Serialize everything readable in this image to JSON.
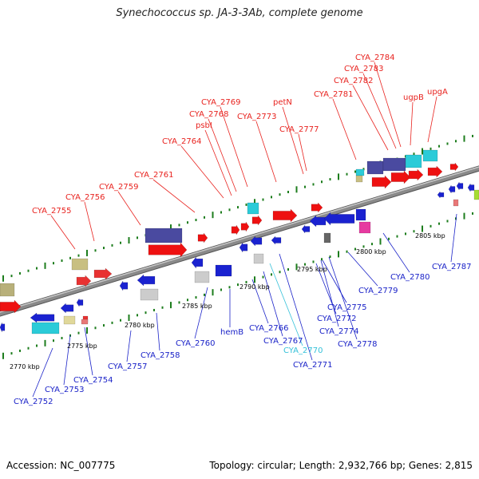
{
  "title": "Synechococcus sp. JA-3-3Ab, complete genome",
  "footer": {
    "accession": "Accession: NC_007775",
    "stats": "Topology: circular; Length: 2,932,766 bp; Genes: 2,815"
  },
  "colors": {
    "top_label": "#e8231f",
    "bottom_label": "#1a22c8",
    "highlight_label": "#35c1d9",
    "backbone": "#8a8a8a",
    "tick_green": "#1d7d1d"
  },
  "scale_labels": [
    "2770 kbp",
    "2775 kbp",
    "2780 kbp",
    "2785 kbp",
    "2790 kbp",
    "2795 kbp",
    "2800 kbp",
    "2805 kbp"
  ],
  "top_labels": [
    "CYA_2755",
    "CYA_2756",
    "CYA_2759",
    "CYA_2761",
    "CYA_2764",
    "psbI",
    "CYA_2768",
    "CYA_2769",
    "CYA_2773",
    "petN",
    "CYA_2777",
    "CYA_2781",
    "CYA_2782",
    "CYA_2783",
    "CYA_2784",
    "ugpB",
    "upgA"
  ],
  "bottom_labels": [
    "CYA_2752",
    "CYA_2753",
    "CYA_2754",
    "CYA_2757",
    "CYA_2758",
    "CYA_2760",
    "hemB",
    "CYA_2766",
    "CYA_2767",
    "CYA_2770",
    "CYA_2771",
    "CYA_2772",
    "CYA_2774",
    "CYA_2775",
    "CYA_2778",
    "CYA_2779",
    "CYA_2780",
    "CYA_2787"
  ]
}
